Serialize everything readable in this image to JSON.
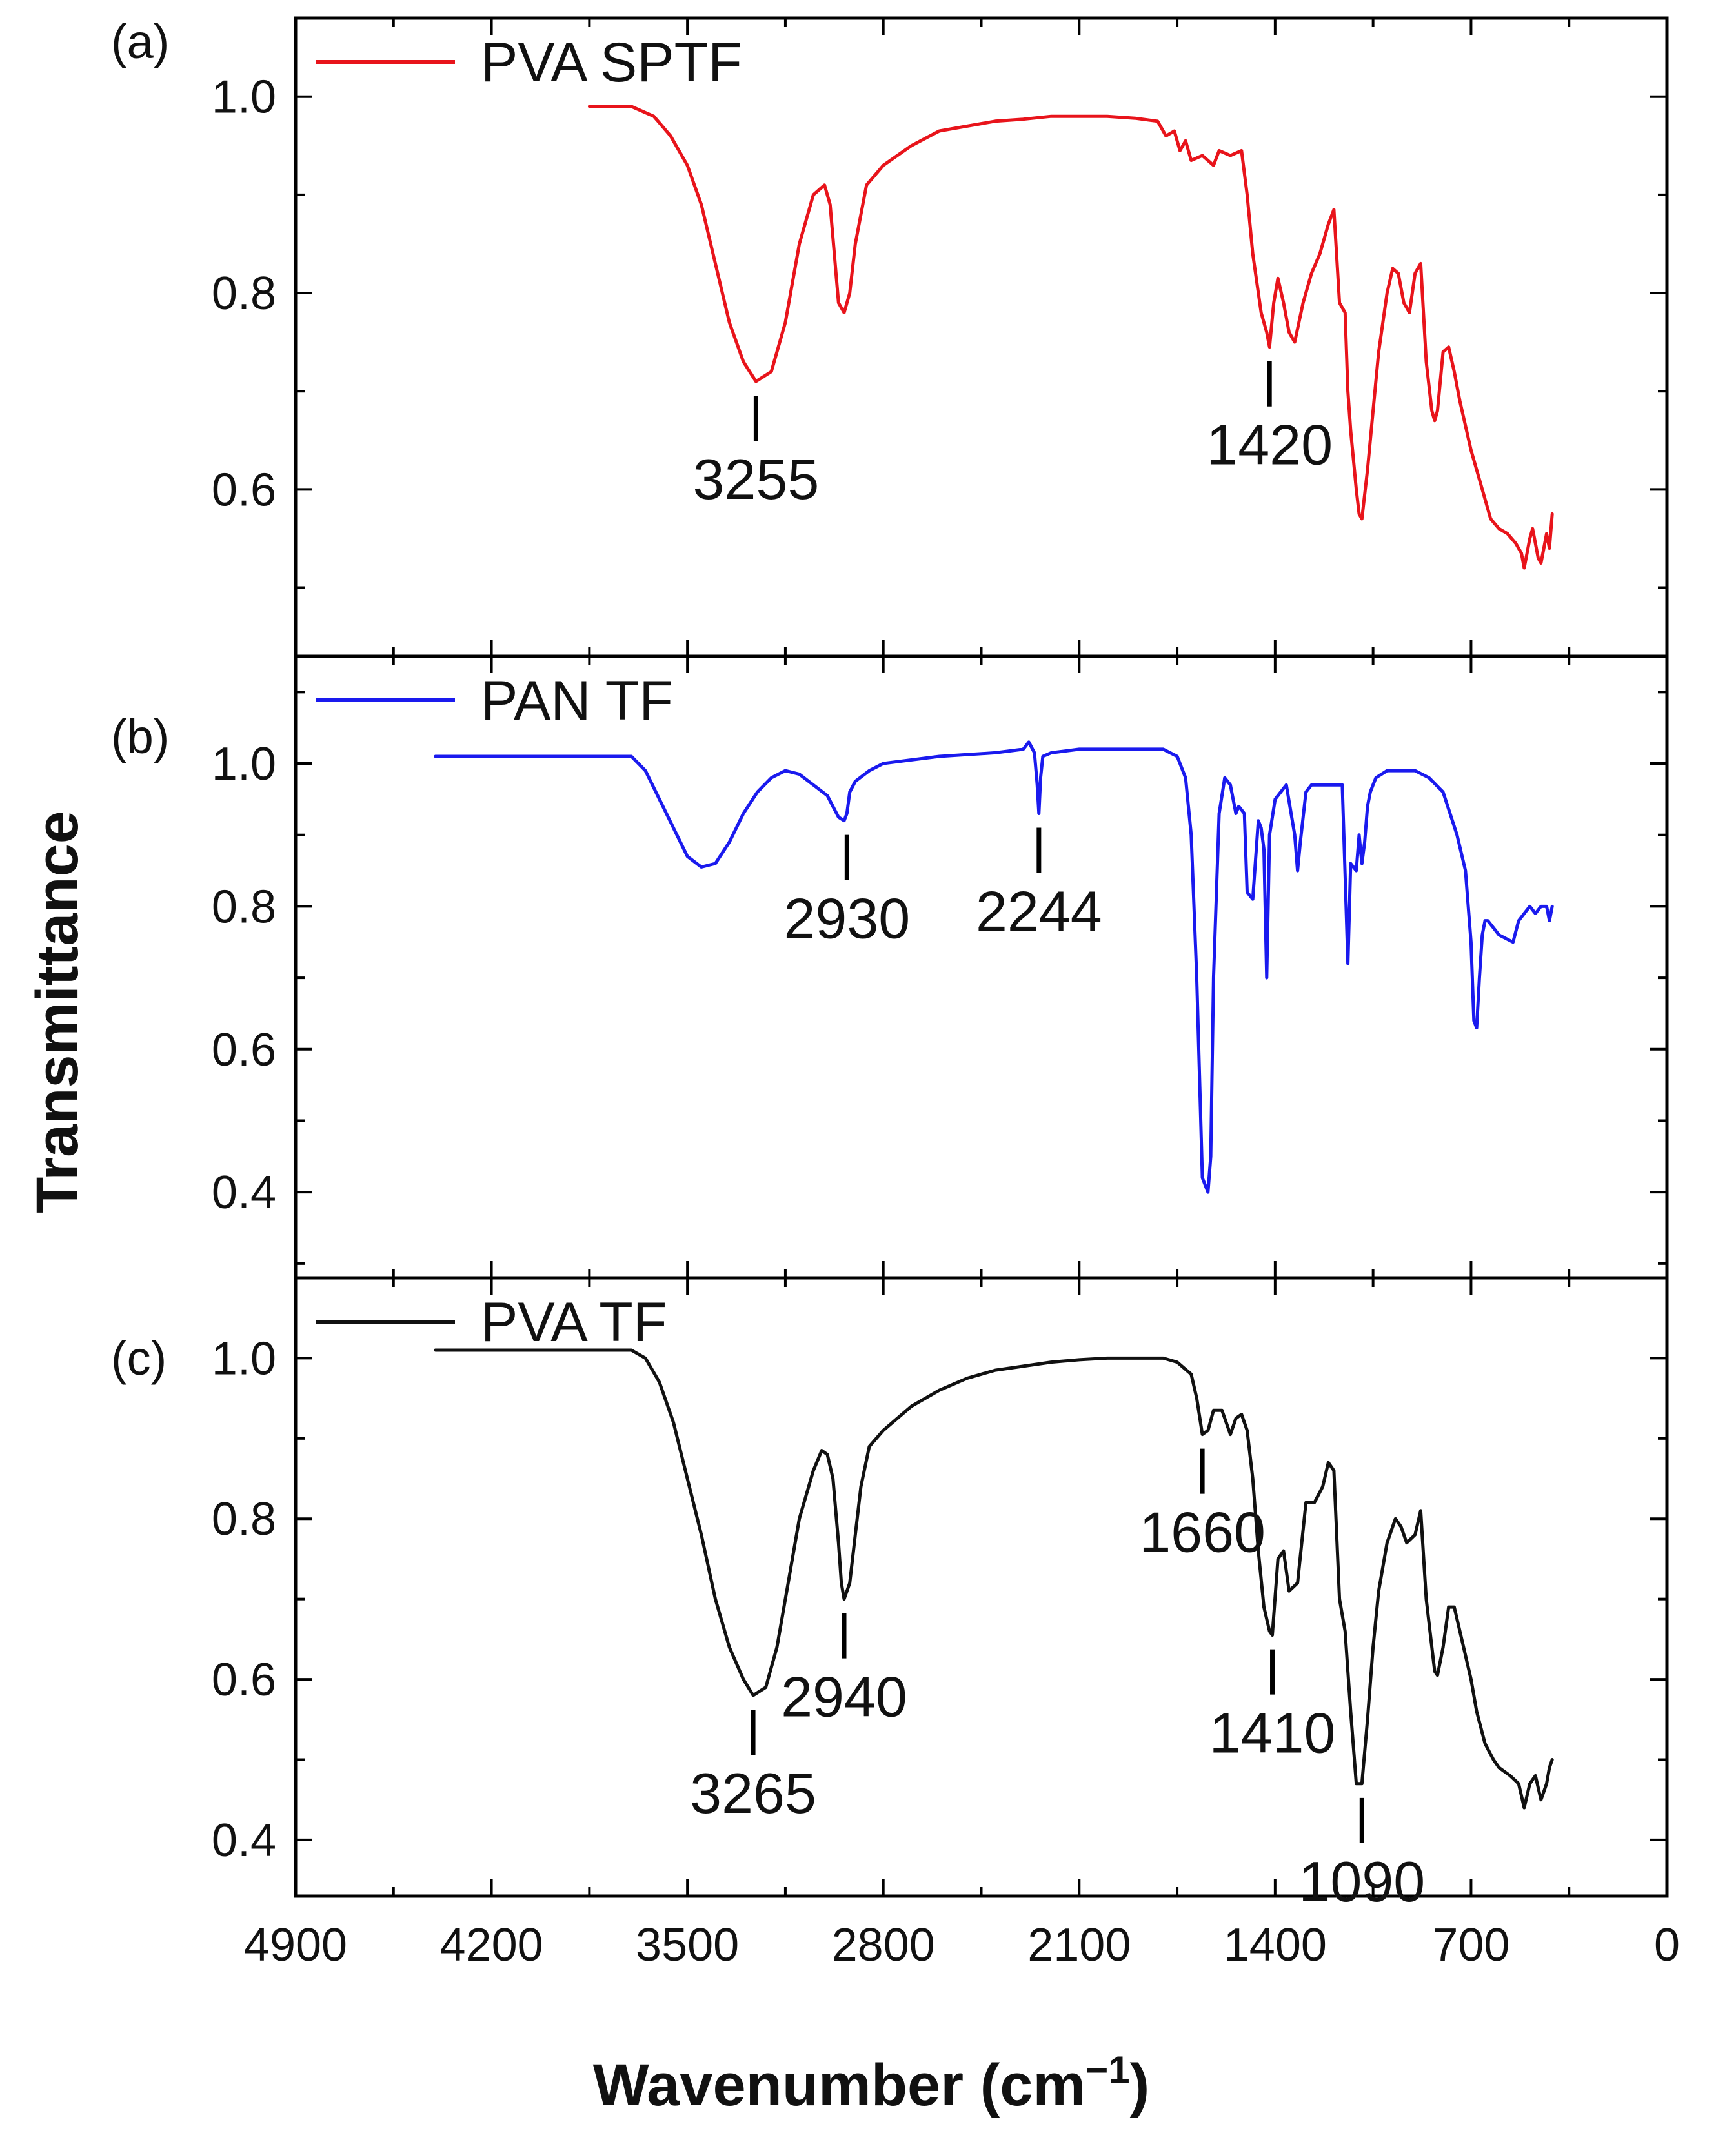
{
  "chart_data": {
    "type": "line",
    "xlabel": "Wavenumber",
    "xlabel_unit_base": "cm",
    "xlabel_unit_sup": "−1",
    "ylabel": "Transmittance",
    "xlim": [
      4900,
      0
    ],
    "xticks": [
      4900,
      4200,
      3500,
      2800,
      2100,
      1400,
      700,
      0
    ],
    "xtick_labels": [
      "4900",
      "4200",
      "3500",
      "2800",
      "2100",
      "1400",
      "700",
      "0"
    ],
    "panels": [
      {
        "id": "a",
        "label": "(a)",
        "legend": "PVA SPTF",
        "color": "#e8141b",
        "ylim": [
          0.43,
          1.08
        ],
        "yticks": [
          0.6,
          0.8,
          1.0
        ],
        "ytick_labels": [
          "0.6",
          "0.8",
          "1.0"
        ],
        "series": {
          "name": "PVA SPTF",
          "x": [
            3850,
            3700,
            3620,
            3560,
            3500,
            3450,
            3400,
            3350,
            3300,
            3255,
            3200,
            3150,
            3100,
            3050,
            3010,
            2990,
            2975,
            2960,
            2940,
            2920,
            2900,
            2880,
            2860,
            2800,
            2700,
            2600,
            2500,
            2400,
            2300,
            2200,
            2100,
            2000,
            1900,
            1820,
            1790,
            1760,
            1740,
            1720,
            1700,
            1660,
            1620,
            1600,
            1560,
            1520,
            1500,
            1480,
            1450,
            1430,
            1420,
            1405,
            1390,
            1370,
            1350,
            1330,
            1300,
            1270,
            1240,
            1210,
            1190,
            1170,
            1150,
            1140,
            1130,
            1110,
            1100,
            1090,
            1070,
            1050,
            1030,
            1000,
            980,
            960,
            940,
            920,
            900,
            880,
            860,
            840,
            830,
            820,
            800,
            780,
            760,
            740,
            700,
            680,
            660,
            630,
            600,
            570,
            540,
            520,
            510,
            500,
            490,
            480,
            470,
            460,
            450,
            440,
            430,
            420,
            410
          ],
          "y": [
            0.99,
            0.99,
            0.98,
            0.96,
            0.93,
            0.89,
            0.83,
            0.77,
            0.73,
            0.71,
            0.72,
            0.77,
            0.85,
            0.9,
            0.91,
            0.89,
            0.84,
            0.79,
            0.78,
            0.8,
            0.85,
            0.88,
            0.91,
            0.93,
            0.95,
            0.965,
            0.97,
            0.975,
            0.977,
            0.98,
            0.98,
            0.98,
            0.978,
            0.975,
            0.96,
            0.965,
            0.945,
            0.955,
            0.935,
            0.94,
            0.93,
            0.945,
            0.94,
            0.945,
            0.9,
            0.84,
            0.78,
            0.76,
            0.745,
            0.79,
            0.815,
            0.79,
            0.76,
            0.75,
            0.79,
            0.82,
            0.84,
            0.87,
            0.885,
            0.79,
            0.78,
            0.7,
            0.66,
            0.6,
            0.575,
            0.57,
            0.62,
            0.68,
            0.74,
            0.8,
            0.825,
            0.82,
            0.79,
            0.78,
            0.82,
            0.83,
            0.73,
            0.68,
            0.67,
            0.68,
            0.74,
            0.745,
            0.72,
            0.69,
            0.64,
            0.62,
            0.6,
            0.57,
            0.56,
            0.555,
            0.545,
            0.535,
            0.52,
            0.535,
            0.55,
            0.56,
            0.545,
            0.53,
            0.525,
            0.54,
            0.555,
            0.54,
            0.575
          ]
        },
        "annotations": [
          {
            "x": 3255,
            "y": 0.71,
            "label": "3255"
          },
          {
            "x": 1420,
            "y": 0.745,
            "label": "1420"
          }
        ]
      },
      {
        "id": "b",
        "label": "(b)",
        "legend": "PAN TF",
        "color": "#1a1aee",
        "ylim": [
          0.28,
          1.15
        ],
        "yticks": [
          0.4,
          0.6,
          0.8,
          1.0
        ],
        "ytick_labels": [
          "0.4",
          "0.6",
          "0.8",
          "1.0"
        ],
        "series": {
          "name": "PAN TF",
          "x": [
            4400,
            4200,
            4000,
            3800,
            3700,
            3650,
            3600,
            3550,
            3500,
            3450,
            3400,
            3350,
            3300,
            3250,
            3200,
            3150,
            3100,
            3050,
            3000,
            2960,
            2940,
            2930,
            2920,
            2900,
            2850,
            2800,
            2600,
            2400,
            2300,
            2280,
            2260,
            2250,
            2244,
            2238,
            2230,
            2200,
            2100,
            1900,
            1800,
            1750,
            1720,
            1700,
            1680,
            1660,
            1640,
            1630,
            1620,
            1600,
            1580,
            1560,
            1540,
            1530,
            1510,
            1500,
            1480,
            1460,
            1450,
            1440,
            1430,
            1420,
            1400,
            1380,
            1360,
            1330,
            1320,
            1310,
            1290,
            1270,
            1250,
            1230,
            1200,
            1160,
            1140,
            1130,
            1110,
            1100,
            1090,
            1080,
            1070,
            1060,
            1050,
            1040,
            1000,
            950,
            900,
            850,
            800,
            750,
            720,
            700,
            690,
            680,
            670,
            660,
            650,
            640,
            620,
            600,
            550,
            530,
            510,
            490,
            470,
            450,
            430,
            420,
            410
          ],
          "y": [
            1.01,
            1.01,
            1.01,
            1.01,
            1.01,
            0.99,
            0.95,
            0.91,
            0.87,
            0.855,
            0.86,
            0.89,
            0.93,
            0.96,
            0.98,
            0.99,
            0.985,
            0.97,
            0.955,
            0.925,
            0.92,
            0.93,
            0.96,
            0.975,
            0.99,
            1.0,
            1.01,
            1.015,
            1.02,
            1.03,
            1.015,
            0.97,
            0.93,
            0.98,
            1.01,
            1.015,
            1.02,
            1.02,
            1.02,
            1.01,
            0.98,
            0.9,
            0.7,
            0.42,
            0.4,
            0.45,
            0.7,
            0.93,
            0.98,
            0.97,
            0.93,
            0.94,
            0.93,
            0.82,
            0.81,
            0.92,
            0.91,
            0.88,
            0.7,
            0.9,
            0.95,
            0.96,
            0.97,
            0.9,
            0.85,
            0.89,
            0.96,
            0.97,
            0.97,
            0.97,
            0.97,
            0.97,
            0.72,
            0.86,
            0.85,
            0.9,
            0.86,
            0.89,
            0.94,
            0.96,
            0.97,
            0.98,
            0.99,
            0.99,
            0.99,
            0.98,
            0.96,
            0.9,
            0.85,
            0.75,
            0.64,
            0.63,
            0.7,
            0.76,
            0.78,
            0.78,
            0.77,
            0.76,
            0.75,
            0.78,
            0.79,
            0.8,
            0.79,
            0.8,
            0.8,
            0.78,
            0.8
          ]
        },
        "annotations": [
          {
            "x": 2930,
            "y": 0.92,
            "label": "2930"
          },
          {
            "x": 2244,
            "y": 0.93,
            "label": "2244"
          }
        ]
      },
      {
        "id": "c",
        "label": "(c)",
        "legend": "PVA TF",
        "color": "#111111",
        "ylim": [
          0.33,
          1.1
        ],
        "yticks": [
          0.4,
          0.6,
          0.8,
          1.0
        ],
        "ytick_labels": [
          "0.4",
          "0.6",
          "0.8",
          "1.0"
        ],
        "series": {
          "name": "PVA TF",
          "x": [
            4400,
            4200,
            4000,
            3800,
            3700,
            3650,
            3600,
            3550,
            3500,
            3450,
            3400,
            3350,
            3300,
            3265,
            3220,
            3180,
            3140,
            3100,
            3050,
            3020,
            3000,
            2980,
            2960,
            2950,
            2940,
            2920,
            2900,
            2880,
            2850,
            2800,
            2700,
            2600,
            2500,
            2400,
            2300,
            2200,
            2100,
            2000,
            1900,
            1800,
            1750,
            1700,
            1680,
            1660,
            1640,
            1620,
            1590,
            1560,
            1540,
            1520,
            1500,
            1480,
            1460,
            1440,
            1420,
            1410,
            1390,
            1370,
            1350,
            1320,
            1290,
            1260,
            1230,
            1210,
            1190,
            1170,
            1150,
            1130,
            1110,
            1090,
            1070,
            1050,
            1030,
            1000,
            970,
            950,
            930,
            900,
            880,
            860,
            840,
            830,
            820,
            800,
            780,
            760,
            740,
            700,
            680,
            650,
            620,
            600,
            560,
            530,
            510,
            490,
            470,
            450,
            430,
            420,
            410
          ],
          "y": [
            1.01,
            1.01,
            1.01,
            1.01,
            1.01,
            1.0,
            0.97,
            0.92,
            0.85,
            0.78,
            0.7,
            0.64,
            0.6,
            0.58,
            0.59,
            0.64,
            0.72,
            0.8,
            0.86,
            0.885,
            0.88,
            0.85,
            0.77,
            0.72,
            0.7,
            0.72,
            0.78,
            0.84,
            0.89,
            0.91,
            0.94,
            0.96,
            0.975,
            0.985,
            0.99,
            0.995,
            0.998,
            1.0,
            1.0,
            1.0,
            0.995,
            0.98,
            0.95,
            0.905,
            0.91,
            0.935,
            0.935,
            0.905,
            0.925,
            0.93,
            0.91,
            0.85,
            0.76,
            0.69,
            0.66,
            0.655,
            0.75,
            0.76,
            0.71,
            0.72,
            0.82,
            0.82,
            0.84,
            0.87,
            0.86,
            0.7,
            0.66,
            0.56,
            0.47,
            0.47,
            0.55,
            0.64,
            0.71,
            0.77,
            0.8,
            0.79,
            0.77,
            0.78,
            0.81,
            0.7,
            0.64,
            0.61,
            0.605,
            0.64,
            0.69,
            0.69,
            0.66,
            0.6,
            0.56,
            0.52,
            0.5,
            0.49,
            0.48,
            0.47,
            0.44,
            0.47,
            0.48,
            0.45,
            0.47,
            0.49,
            0.5
          ]
        },
        "annotations": [
          {
            "x": 3265,
            "y": 0.58,
            "label": "3265"
          },
          {
            "x": 2940,
            "y": 0.7,
            "label": "2940"
          },
          {
            "x": 1660,
            "y": 0.905,
            "label": "1660"
          },
          {
            "x": 1410,
            "y": 0.655,
            "label": "1410"
          },
          {
            "x": 1090,
            "y": 0.47,
            "label": "1090"
          }
        ]
      }
    ]
  }
}
